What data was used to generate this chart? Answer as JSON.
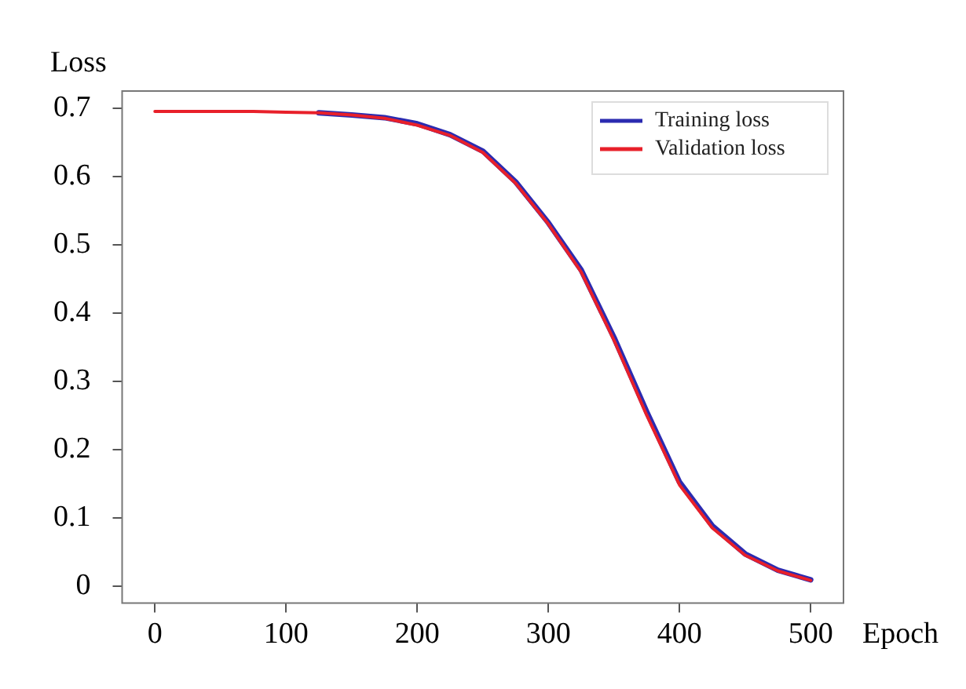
{
  "chart_data": {
    "type": "line",
    "xlabel": "Epoch",
    "ylabel": "Loss",
    "x": [
      0,
      25,
      50,
      75,
      100,
      125,
      150,
      175,
      200,
      225,
      250,
      275,
      300,
      325,
      350,
      375,
      400,
      425,
      450,
      475,
      500
    ],
    "series": [
      {
        "name": "Training loss",
        "color": "#2b2bb0",
        "values": [
          null,
          null,
          null,
          null,
          null,
          0.693,
          0.69,
          0.686,
          0.677,
          0.661,
          0.637,
          0.592,
          0.532,
          0.463,
          0.364,
          0.255,
          0.152,
          0.088,
          0.047,
          0.023,
          0.009
        ]
      },
      {
        "name": "Validation loss",
        "color": "#e8202a",
        "values": [
          0.695,
          0.695,
          0.695,
          0.695,
          0.694,
          0.693,
          0.69,
          0.685,
          0.675,
          0.66,
          0.635,
          0.59,
          0.53,
          0.46,
          0.36,
          0.25,
          0.148,
          0.085,
          0.045,
          0.022,
          0.008
        ]
      }
    ],
    "xlim": [
      -25,
      525
    ],
    "xticks": [
      0,
      100,
      200,
      300,
      400,
      500
    ],
    "ylim": [
      -0.025,
      0.725
    ],
    "yticks": [
      0,
      0.1,
      0.2,
      0.3,
      0.4,
      0.5,
      0.6,
      0.7
    ],
    "legend": "top right",
    "grid": false,
    "marker": "none",
    "line_style": "solid"
  }
}
